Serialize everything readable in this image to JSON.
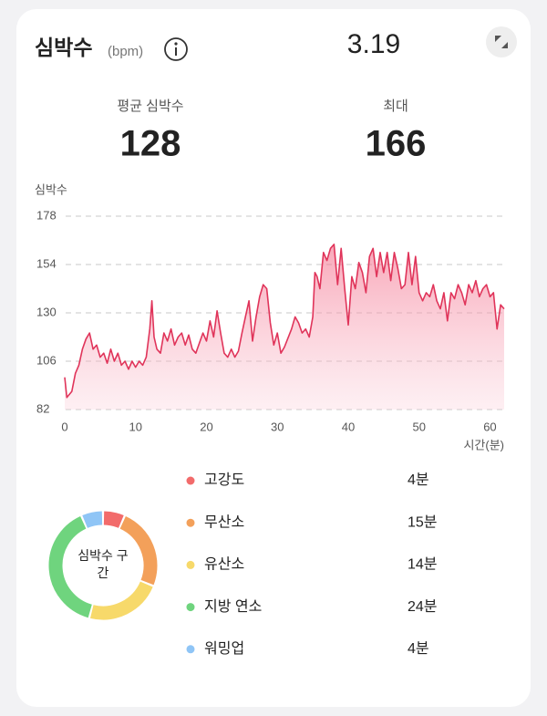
{
  "header": {
    "title": "심박수",
    "unit": "(bpm)",
    "date": "3.19"
  },
  "stats": [
    {
      "label": "평균 심박수",
      "value": "128"
    },
    {
      "label": "최대",
      "value": "166"
    }
  ],
  "chart_data": [
    {
      "type": "line",
      "y_label": "심박수",
      "x_label": "시간(분)",
      "color": "#e0345a",
      "xlim": [
        0,
        62
      ],
      "xticks": [
        0,
        10,
        20,
        30,
        40,
        50,
        60
      ],
      "ylim": [
        82,
        178
      ],
      "yticks": [
        82,
        106,
        130,
        154,
        178
      ],
      "grid": true,
      "x": [
        0,
        0.3,
        1,
        1.5,
        2,
        2.5,
        3,
        3.5,
        4,
        4.5,
        5,
        5.5,
        6,
        6.5,
        7,
        7.5,
        8,
        8.5,
        9,
        9.5,
        10,
        10.5,
        11,
        11.5,
        12,
        12.3,
        12.6,
        13,
        13.5,
        14,
        14.5,
        15,
        15.5,
        16,
        16.5,
        17,
        17.5,
        18,
        18.5,
        19,
        19.5,
        20,
        20.5,
        21,
        21.5,
        22,
        22.5,
        23,
        23.5,
        24,
        24.5,
        25,
        25.5,
        26,
        26.5,
        27,
        27.5,
        28,
        28.5,
        29,
        29.5,
        30,
        30.5,
        31,
        32,
        32.5,
        33,
        33.5,
        34,
        34.5,
        35,
        35.3,
        35.6,
        36,
        36.5,
        37,
        37.5,
        38,
        38.5,
        39,
        39.5,
        40,
        40.5,
        41,
        41.5,
        42,
        42.5,
        43,
        43.5,
        44,
        44.5,
        45,
        45.5,
        46,
        46.5,
        47,
        47.5,
        48,
        48.5,
        49,
        49.5,
        50,
        50.5,
        51,
        51.5,
        52,
        52.5,
        53,
        53.5,
        54,
        54.5,
        55,
        55.5,
        56,
        56.5,
        57,
        57.5,
        58,
        58.5,
        59,
        59.5,
        60,
        60.5,
        61,
        61.5,
        62
      ],
      "values": [
        98,
        88,
        91,
        100,
        104,
        112,
        117,
        120,
        112,
        114,
        108,
        110,
        105,
        112,
        106,
        110,
        104,
        106,
        102,
        106,
        103,
        106,
        104,
        108,
        122,
        136,
        118,
        112,
        110,
        120,
        116,
        122,
        114,
        118,
        120,
        114,
        119,
        112,
        110,
        115,
        120,
        116,
        126,
        118,
        131,
        120,
        110,
        108,
        112,
        108,
        111,
        120,
        128,
        136,
        116,
        128,
        138,
        144,
        142,
        125,
        114,
        120,
        110,
        113,
        122,
        128,
        125,
        120,
        122,
        118,
        128,
        150,
        148,
        142,
        160,
        156,
        162,
        164,
        144,
        162,
        142,
        124,
        148,
        142,
        155,
        150,
        140,
        158,
        162,
        148,
        160,
        150,
        160,
        146,
        160,
        152,
        142,
        144,
        160,
        144,
        158,
        140,
        136,
        140,
        138,
        144,
        136,
        132,
        140,
        126,
        140,
        137,
        144,
        140,
        134,
        144,
        140,
        146,
        138,
        142,
        144,
        138,
        140,
        122,
        134,
        132
      ]
    },
    {
      "type": "donut",
      "title": "심박수 구간",
      "categories": [
        "고강도",
        "무산소",
        "유산소",
        "지방 연소",
        "워밍업"
      ],
      "values": [
        4,
        15,
        14,
        24,
        4
      ],
      "value_labels": [
        "4분",
        "15분",
        "14분",
        "24분",
        "4분"
      ],
      "colors": [
        "#f26b6b",
        "#f3a05a",
        "#f7d96a",
        "#6fd47e",
        "#8fc5f6"
      ]
    }
  ]
}
